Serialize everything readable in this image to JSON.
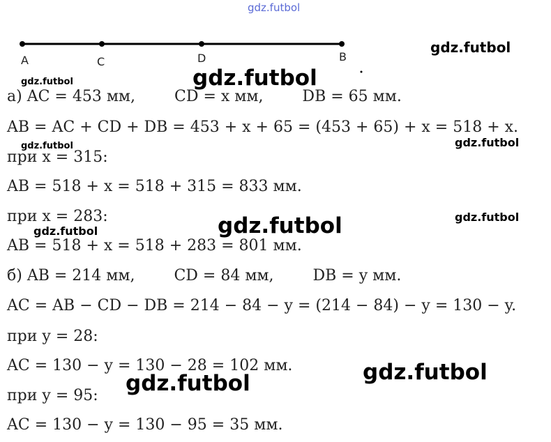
{
  "diagram": {
    "points": [
      "A",
      "C",
      "D",
      "B"
    ]
  },
  "lines": [
    "а) AC = 453 мм,        CD = x мм,        DB = 65 мм.",
    "AB = AC + CD + DB = 453 + x + 65 = (453 + 65) + x = 518 + x.",
    "при x = 315:",
    "AB = 518 + x = 518 + 315 = 833 мм.",
    "при x = 283:",
    "AB = 518 + x = 518 + 283 = 801 мм.",
    "б) AB = 214 мм,        CD = 84 мм,        DB = y мм.",
    "AC = AB − CD − DB = 214 − 84 − y = (214 − 84) − y = 130 − y.",
    "при y = 28:",
    "AC = 130 − y = 130 − 28 = 102 мм.",
    "при y = 95:",
    "AC = 130 − y = 130 − 95 = 35 мм."
  ],
  "watermarks": [
    "gdz.futbol",
    "gdz.futbol",
    "gdz.futbol",
    "gdz.futbol",
    "gdz.futbol",
    "gdz.futbol",
    "gdz.futbol",
    "gdz.futbol",
    "gdz.futbol",
    "gdz.futbol",
    "gdz.futbol"
  ]
}
